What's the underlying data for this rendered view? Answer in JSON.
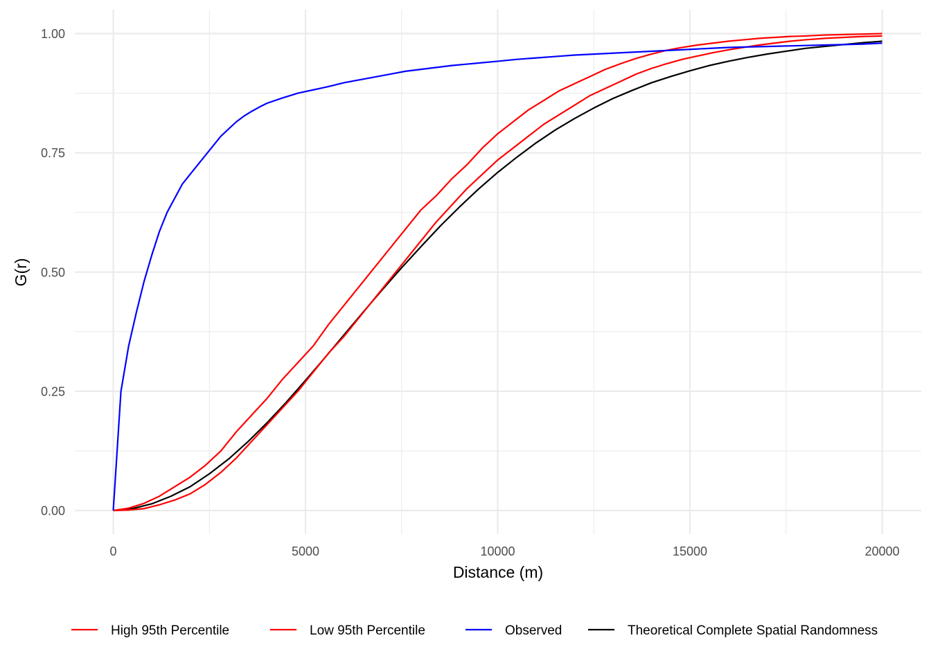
{
  "chart_data": {
    "type": "line",
    "title": "",
    "xlabel": "Distance (m)",
    "ylabel": "G(r)",
    "xlim": [
      -1000,
      21000
    ],
    "ylim": [
      -0.05,
      1.05
    ],
    "x_ticks": [
      0,
      5000,
      10000,
      15000,
      20000
    ],
    "x_tick_labels": [
      "0",
      "5000",
      "10000",
      "15000",
      "20000"
    ],
    "x_minor_ticks": [
      2500,
      7500,
      12500,
      17500
    ],
    "y_ticks": [
      0,
      0.25,
      0.5,
      0.75,
      1.0
    ],
    "y_tick_labels": [
      "0.00",
      "0.25",
      "0.50",
      "0.75",
      "1.00"
    ],
    "y_minor_ticks": [
      0.125,
      0.375,
      0.625,
      0.875
    ],
    "grid": true,
    "legend_position": "bottom",
    "series": [
      {
        "name": "High 95th Percentile",
        "color": "#ff0000",
        "points": [
          [
            0,
            0
          ],
          [
            400,
            0.005
          ],
          [
            800,
            0.015
          ],
          [
            1200,
            0.03
          ],
          [
            1600,
            0.05
          ],
          [
            2000,
            0.07
          ],
          [
            2400,
            0.095
          ],
          [
            2800,
            0.125
          ],
          [
            3200,
            0.165
          ],
          [
            3600,
            0.2
          ],
          [
            4000,
            0.235
          ],
          [
            4400,
            0.275
          ],
          [
            4800,
            0.31
          ],
          [
            5200,
            0.345
          ],
          [
            5600,
            0.39
          ],
          [
            6000,
            0.43
          ],
          [
            6400,
            0.47
          ],
          [
            6800,
            0.51
          ],
          [
            7200,
            0.55
          ],
          [
            7600,
            0.59
          ],
          [
            8000,
            0.63
          ],
          [
            8400,
            0.66
          ],
          [
            8800,
            0.695
          ],
          [
            9200,
            0.725
          ],
          [
            9600,
            0.76
          ],
          [
            10000,
            0.79
          ],
          [
            10400,
            0.815
          ],
          [
            10800,
            0.84
          ],
          [
            11200,
            0.86
          ],
          [
            11600,
            0.88
          ],
          [
            12000,
            0.895
          ],
          [
            12400,
            0.91
          ],
          [
            12800,
            0.925
          ],
          [
            13200,
            0.937
          ],
          [
            13600,
            0.948
          ],
          [
            14000,
            0.957
          ],
          [
            14400,
            0.965
          ],
          [
            14800,
            0.971
          ],
          [
            15200,
            0.976
          ],
          [
            15600,
            0.98
          ],
          [
            16000,
            0.984
          ],
          [
            16400,
            0.987
          ],
          [
            16800,
            0.99
          ],
          [
            17200,
            0.992
          ],
          [
            17600,
            0.994
          ],
          [
            18000,
            0.995
          ],
          [
            18500,
            0.997
          ],
          [
            19000,
            0.998
          ],
          [
            19500,
            0.999
          ],
          [
            20000,
            1.0
          ]
        ]
      },
      {
        "name": "Low 95th Percentile",
        "color": "#ff0000",
        "points": [
          [
            0,
            0
          ],
          [
            400,
            0.001
          ],
          [
            800,
            0.004
          ],
          [
            1200,
            0.012
          ],
          [
            1600,
            0.022
          ],
          [
            2000,
            0.035
          ],
          [
            2400,
            0.055
          ],
          [
            2800,
            0.08
          ],
          [
            3200,
            0.11
          ],
          [
            3600,
            0.145
          ],
          [
            4000,
            0.18
          ],
          [
            4400,
            0.215
          ],
          [
            4800,
            0.25
          ],
          [
            5200,
            0.29
          ],
          [
            5600,
            0.33
          ],
          [
            6000,
            0.365
          ],
          [
            6400,
            0.405
          ],
          [
            6800,
            0.445
          ],
          [
            7200,
            0.485
          ],
          [
            7600,
            0.525
          ],
          [
            8000,
            0.565
          ],
          [
            8400,
            0.605
          ],
          [
            8800,
            0.64
          ],
          [
            9200,
            0.675
          ],
          [
            9600,
            0.705
          ],
          [
            10000,
            0.735
          ],
          [
            10400,
            0.76
          ],
          [
            10800,
            0.785
          ],
          [
            11200,
            0.81
          ],
          [
            11600,
            0.83
          ],
          [
            12000,
            0.85
          ],
          [
            12400,
            0.87
          ],
          [
            12800,
            0.885
          ],
          [
            13200,
            0.9
          ],
          [
            13600,
            0.915
          ],
          [
            14000,
            0.927
          ],
          [
            14400,
            0.937
          ],
          [
            14800,
            0.946
          ],
          [
            15200,
            0.953
          ],
          [
            15600,
            0.96
          ],
          [
            16000,
            0.966
          ],
          [
            16400,
            0.971
          ],
          [
            16800,
            0.976
          ],
          [
            17200,
            0.98
          ],
          [
            17600,
            0.984
          ],
          [
            18000,
            0.987
          ],
          [
            18500,
            0.99
          ],
          [
            19000,
            0.992
          ],
          [
            19500,
            0.994
          ],
          [
            20000,
            0.995
          ]
        ]
      },
      {
        "name": "Observed",
        "color": "#0000ff",
        "points": [
          [
            0,
            0
          ],
          [
            200,
            0.25
          ],
          [
            400,
            0.345
          ],
          [
            600,
            0.415
          ],
          [
            800,
            0.48
          ],
          [
            1000,
            0.535
          ],
          [
            1200,
            0.585
          ],
          [
            1400,
            0.625
          ],
          [
            1600,
            0.655
          ],
          [
            1800,
            0.685
          ],
          [
            2000,
            0.705
          ],
          [
            2200,
            0.725
          ],
          [
            2400,
            0.745
          ],
          [
            2600,
            0.765
          ],
          [
            2800,
            0.785
          ],
          [
            3000,
            0.8
          ],
          [
            3200,
            0.815
          ],
          [
            3400,
            0.827
          ],
          [
            3600,
            0.837
          ],
          [
            3800,
            0.846
          ],
          [
            4000,
            0.854
          ],
          [
            4400,
            0.865
          ],
          [
            4800,
            0.875
          ],
          [
            5200,
            0.882
          ],
          [
            5600,
            0.889
          ],
          [
            6000,
            0.897
          ],
          [
            6400,
            0.903
          ],
          [
            6800,
            0.909
          ],
          [
            7200,
            0.915
          ],
          [
            7600,
            0.921
          ],
          [
            8000,
            0.925
          ],
          [
            8400,
            0.929
          ],
          [
            8800,
            0.933
          ],
          [
            9200,
            0.936
          ],
          [
            9600,
            0.939
          ],
          [
            10000,
            0.942
          ],
          [
            10500,
            0.946
          ],
          [
            11000,
            0.949
          ],
          [
            11500,
            0.952
          ],
          [
            12000,
            0.955
          ],
          [
            12500,
            0.957
          ],
          [
            13000,
            0.959
          ],
          [
            13500,
            0.961
          ],
          [
            14000,
            0.963
          ],
          [
            14500,
            0.965
          ],
          [
            15000,
            0.967
          ],
          [
            15500,
            0.969
          ],
          [
            16000,
            0.971
          ],
          [
            16500,
            0.972
          ],
          [
            17000,
            0.973
          ],
          [
            17500,
            0.974
          ],
          [
            18000,
            0.975
          ],
          [
            18500,
            0.976
          ],
          [
            19000,
            0.977
          ],
          [
            19500,
            0.978
          ],
          [
            20000,
            0.98
          ]
        ]
      },
      {
        "name": "Theoretical Complete Spatial Randomness",
        "color": "#000000",
        "points": [
          [
            0,
            0
          ],
          [
            500,
            0.004
          ],
          [
            1000,
            0.014
          ],
          [
            1500,
            0.03
          ],
          [
            2000,
            0.05
          ],
          [
            2500,
            0.077
          ],
          [
            3000,
            0.108
          ],
          [
            3500,
            0.144
          ],
          [
            4000,
            0.184
          ],
          [
            4500,
            0.227
          ],
          [
            5000,
            0.273
          ],
          [
            5500,
            0.32
          ],
          [
            6000,
            0.368
          ],
          [
            6500,
            0.416
          ],
          [
            7000,
            0.463
          ],
          [
            7500,
            0.509
          ],
          [
            8000,
            0.553
          ],
          [
            8500,
            0.596
          ],
          [
            9000,
            0.636
          ],
          [
            9500,
            0.674
          ],
          [
            10000,
            0.709
          ],
          [
            10500,
            0.741
          ],
          [
            11000,
            0.771
          ],
          [
            11500,
            0.798
          ],
          [
            12000,
            0.822
          ],
          [
            12500,
            0.844
          ],
          [
            13000,
            0.864
          ],
          [
            13500,
            0.881
          ],
          [
            14000,
            0.897
          ],
          [
            14500,
            0.91
          ],
          [
            15000,
            0.922
          ],
          [
            15500,
            0.933
          ],
          [
            16000,
            0.942
          ],
          [
            16500,
            0.95
          ],
          [
            17000,
            0.957
          ],
          [
            17500,
            0.963
          ],
          [
            18000,
            0.969
          ],
          [
            18500,
            0.973
          ],
          [
            19000,
            0.977
          ],
          [
            19500,
            0.981
          ],
          [
            20000,
            0.984
          ]
        ]
      }
    ]
  }
}
